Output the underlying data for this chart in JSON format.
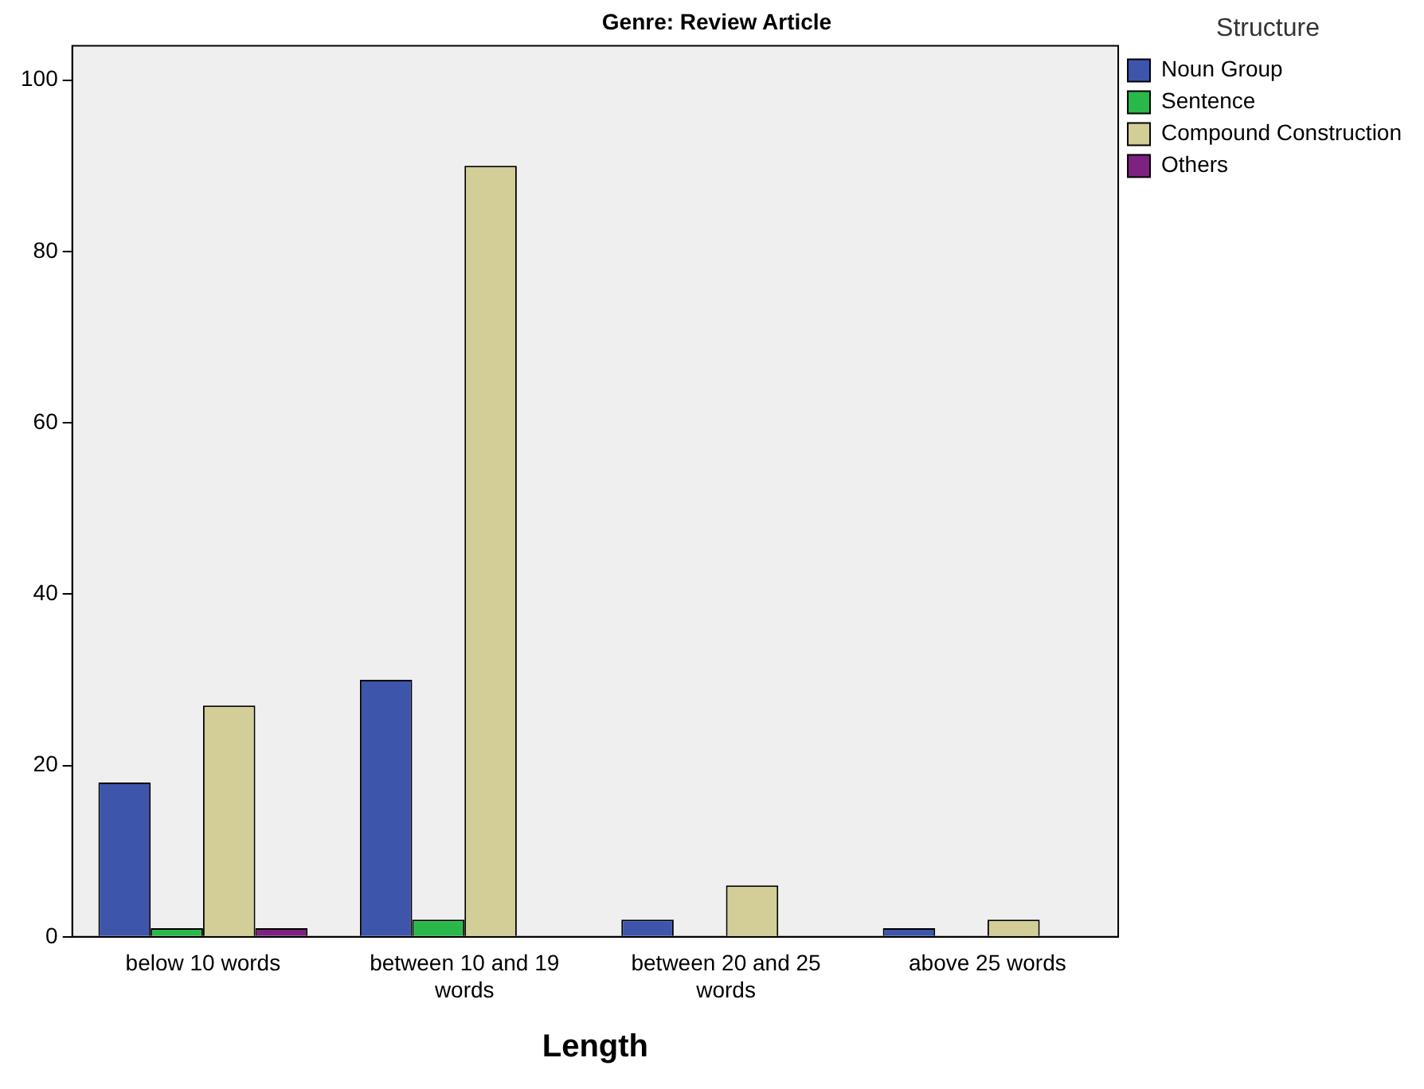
{
  "chart_data": {
    "type": "bar",
    "title": "Genre: Review Article",
    "xlabel": "Length",
    "legend_title": "Structure",
    "categories": [
      "below 10 words",
      "between 10 and 19 words",
      "between 20 and 25 words",
      "above 25 words"
    ],
    "series": [
      {
        "name": "Noun Group",
        "color": "#3d56ac",
        "values": [
          18,
          30,
          2,
          1
        ]
      },
      {
        "name": "Sentence",
        "color": "#2bb84a",
        "values": [
          1,
          2,
          null,
          null
        ]
      },
      {
        "name": "Compound Construction",
        "color": "#d3ce97",
        "values": [
          27,
          90,
          6,
          2
        ]
      },
      {
        "name": "Others",
        "color": "#7e2281",
        "values": [
          1,
          null,
          null,
          null
        ]
      }
    ],
    "ylim": [
      0,
      104
    ],
    "yticks": [
      0,
      20,
      40,
      60,
      80,
      100
    ],
    "grid": false,
    "legend": "top right"
  }
}
